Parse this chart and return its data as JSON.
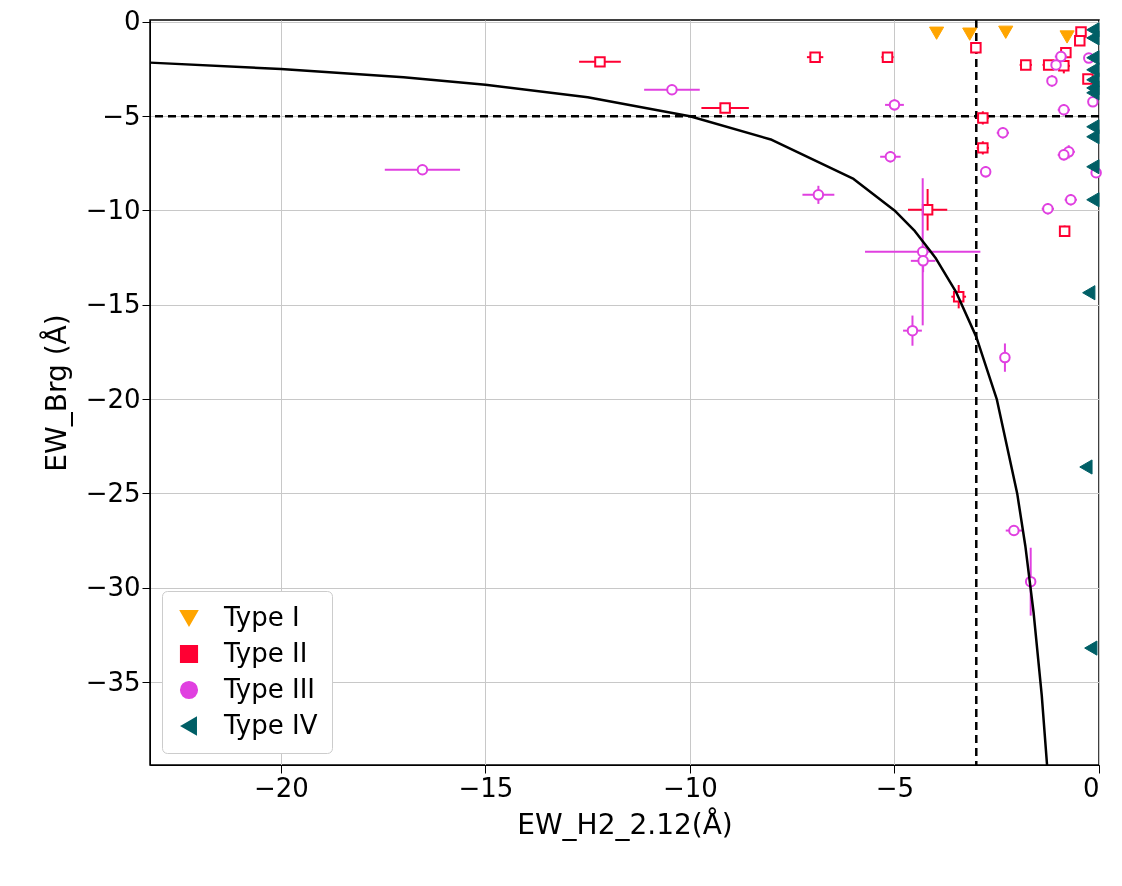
{
  "chart_data": {
    "type": "scatter",
    "xlabel": "EW_H2_2.12(Å)",
    "ylabel": "EW_Brg (Å)",
    "xlim": [
      -23.2,
      0
    ],
    "xticks": [
      -20,
      -15,
      -10,
      -5,
      0
    ],
    "ylim": [
      -39.4,
      0.1
    ],
    "yticks": [
      -35,
      -30,
      -25,
      -20,
      -15,
      -10,
      -5,
      0
    ],
    "grid": true,
    "legend": "bottom left",
    "ref_lines": [
      {
        "axis": "x",
        "value": -3,
        "color": "#000000",
        "line_style": "dashed"
      },
      {
        "axis": "y",
        "value": -5,
        "color": "#000000",
        "line_style": "dashed"
      }
    ],
    "series": [
      {
        "name": "Type I",
        "color": "#ffa500",
        "marker": "triangle-down",
        "x": [
          -3.97,
          -3.16,
          -2.28,
          -0.78
        ],
        "values": [
          -0.6,
          -0.65,
          -0.55,
          -0.8
        ]
      },
      {
        "name": "Type II",
        "color": "#ff0033",
        "marker": "square",
        "x": [
          -12.2,
          -9.14,
          -6.94,
          -5.17,
          -4.19,
          -3.43,
          -3.01,
          -2.84,
          -2.84,
          -1.79,
          -1.23,
          -0.86,
          -0.81,
          -0.44,
          -0.47,
          -0.27,
          -0.84
        ],
        "values": [
          -2.12,
          -4.56,
          -1.87,
          -1.87,
          -9.96,
          -14.57,
          -1.37,
          -5.09,
          -6.68,
          -2.28,
          -2.28,
          -2.33,
          -1.63,
          -0.53,
          -1.0,
          -3.03,
          -11.1
        ],
        "xerrors": [
          0.51,
          0.58,
          0.2,
          0.15,
          0.48,
          0.18,
          0.12,
          0.15,
          0.15,
          0.15,
          0.15,
          0.15,
          0.1,
          0.12,
          0.12,
          0.12,
          0.12
        ],
        "errors": [
          0.2,
          0.2,
          0.2,
          0.2,
          1.1,
          0.62,
          0.3,
          0.35,
          0.35,
          0.2,
          0.2,
          0.4,
          0.15,
          0.2,
          0.2,
          0.2,
          0.3
        ]
      },
      {
        "name": "Type III",
        "color": "#e040e0",
        "marker": "circle",
        "x": [
          -16.54,
          -10.44,
          -6.86,
          -5.0,
          -5.1,
          -4.31,
          -4.3,
          -4.56,
          -2.35,
          -2.77,
          -2.3,
          -2.08,
          -1.67,
          -0.93,
          -1.05,
          -0.25,
          -1.15,
          -0.86,
          -0.74,
          -0.86,
          -0.69,
          -1.25,
          -0.07,
          -0.15
        ],
        "values": [
          -7.84,
          -3.6,
          -9.17,
          -4.4,
          -7.15,
          -12.19,
          -12.67,
          -16.37,
          -5.88,
          -7.95,
          -17.8,
          -26.97,
          -29.68,
          -1.84,
          -2.28,
          -1.92,
          -3.13,
          -4.66,
          -6.89,
          -7.05,
          -9.43,
          -9.91,
          -8.0,
          -4.24
        ],
        "xerrors": [
          0.92,
          0.68,
          0.39,
          0.23,
          0.25,
          1.41,
          0.3,
          0.23,
          0.15,
          0.12,
          0.12,
          0.2,
          0.12,
          0.15,
          0.1,
          0.1,
          0.12,
          0.15,
          0.15,
          0.15,
          0.15,
          0.15,
          0.1,
          0.1
        ],
        "errors": [
          0.2,
          0.15,
          0.48,
          0.3,
          0.3,
          3.9,
          0.6,
          0.8,
          0.3,
          0.3,
          0.75,
          0.2,
          1.8,
          0.2,
          0.2,
          0.2,
          0.3,
          0.3,
          0.35,
          0.3,
          0.3,
          0.3,
          0.2,
          0.2
        ]
      },
      {
        "name": "Type IV",
        "color": "#005f66",
        "marker": "triangle-left",
        "x": [
          -0.15,
          -0.15,
          -0.15,
          -0.15,
          -0.15,
          -0.15,
          -0.15,
          -0.15,
          -0.15,
          -0.15,
          -0.15,
          -0.25,
          -0.32,
          -0.2
        ],
        "values": [
          -0.42,
          -0.85,
          -1.9,
          -2.54,
          -3.07,
          -3.5,
          -3.76,
          -5.56,
          -6.09,
          -7.68,
          -9.43,
          -14.36,
          -23.6,
          -33.2
        ]
      },
      {
        "type": "line",
        "color": "#000000",
        "line_style": "solid",
        "x": [
          -23.2,
          -20,
          -17,
          -15,
          -12.5,
          -10,
          -8,
          -6,
          -5,
          -4.5,
          -4,
          -3.5,
          -3,
          -2.5,
          -2,
          -1.8,
          -1.6,
          -1.4,
          -1.27
        ],
        "values": [
          -2.16,
          -2.5,
          -2.94,
          -3.33,
          -4,
          -5,
          -6.25,
          -8.33,
          -10,
          -11.1,
          -12.5,
          -14.3,
          -16.7,
          -20,
          -25,
          -27.8,
          -31.3,
          -35.7,
          -39.4
        ]
      }
    ]
  }
}
